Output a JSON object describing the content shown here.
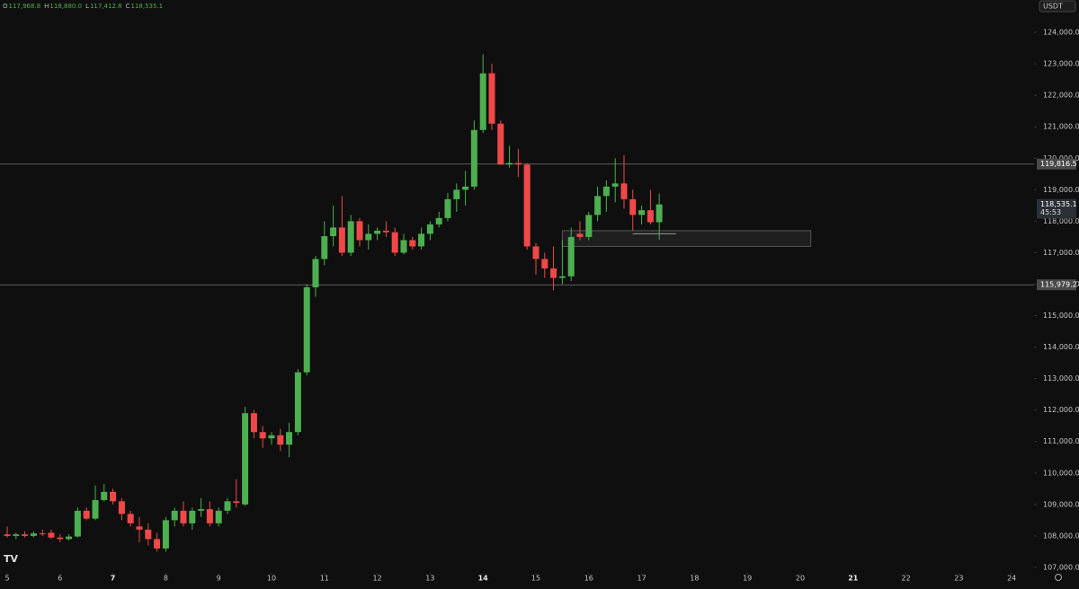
{
  "chart_data": {
    "type": "candlestick",
    "header": [
      {
        "key": "O",
        "value": "117,968.8"
      },
      {
        "key": "H",
        "value": "118,880.0"
      },
      {
        "key": "L",
        "value": "117,412.8"
      },
      {
        "key": "C",
        "value": "118,535.1"
      }
    ],
    "currency": "USDT",
    "up_color": "#4caf50",
    "down_color": "#f04848",
    "x": [
      5,
      5.167,
      5.333,
      5.5,
      5.667,
      5.833,
      6,
      6.167,
      6.333,
      6.5,
      6.667,
      6.833,
      7,
      7.167,
      7.333,
      7.5,
      7.667,
      7.833,
      8,
      8.167,
      8.333,
      8.5,
      8.667,
      8.833,
      9,
      9.167,
      9.333,
      9.5,
      9.667,
      9.833,
      10,
      10.167,
      10.333,
      10.5,
      10.667,
      10.833,
      11,
      11.167,
      11.333,
      11.5,
      11.667,
      11.833,
      12,
      12.167,
      12.333,
      12.5,
      12.667,
      12.833,
      13,
      13.167,
      13.333,
      13.5,
      13.667,
      13.833,
      14,
      14.167,
      14.333,
      14.5,
      14.667,
      14.833,
      15,
      15.167,
      15.333,
      15.5,
      15.667,
      15.833,
      16,
      16.167,
      16.333,
      16.5,
      16.667,
      16.833,
      17,
      17.167,
      17.333
    ],
    "open": [
      108050,
      108000,
      108050,
      108000,
      108080,
      108100,
      107950,
      107900,
      107980,
      108800,
      108550,
      109140,
      109400,
      109100,
      108700,
      108300,
      108200,
      107900,
      107600,
      108500,
      108800,
      108400,
      108800,
      108850,
      108400,
      108800,
      109100,
      109000,
      111900,
      111300,
      111100,
      111200,
      110900,
      111300,
      113200,
      115900,
      116800,
      117525,
      117800,
      117000,
      118000,
      117400,
      117600,
      117700,
      117650,
      117000,
      117400,
      117200,
      117600,
      117900,
      118100,
      118700,
      119000,
      119100,
      120900,
      122700,
      121100,
      119800,
      119850,
      119800,
      117200,
      116800,
      116500,
      116200,
      116250,
      117600,
      117500,
      118200,
      118800,
      119100,
      119200,
      118700,
      118200,
      118350,
      117968.8
    ],
    "high": [
      108300,
      108100,
      108150,
      108150,
      108200,
      108200,
      108050,
      108050,
      108900,
      108900,
      109600,
      109650,
      109500,
      109200,
      108800,
      108600,
      108400,
      108100,
      108600,
      108900,
      109100,
      108900,
      109200,
      109100,
      108900,
      109200,
      109800,
      112100,
      112000,
      111500,
      111300,
      111400,
      111600,
      113300,
      116000,
      116900,
      118000,
      118500,
      118800,
      118200,
      118100,
      117900,
      117800,
      118000,
      117800,
      117600,
      117500,
      117800,
      118000,
      118300,
      118900,
      119200,
      119600,
      121200,
      123300,
      123000,
      121200,
      120400,
      120300,
      119850,
      117300,
      117000,
      117200,
      117400,
      117800,
      118000,
      118300,
      119100,
      119300,
      120000,
      120100,
      119000,
      118500,
      119000,
      118880
    ],
    "low": [
      107950,
      107900,
      107950,
      107950,
      108000,
      107900,
      107800,
      107850,
      107950,
      108500,
      108500,
      109100,
      109000,
      108500,
      108300,
      107800,
      107700,
      107500,
      107500,
      108300,
      108300,
      108200,
      108600,
      108300,
      108300,
      108700,
      108900,
      108950,
      111100,
      110800,
      110900,
      110700,
      110500,
      111200,
      113100,
      115600,
      116600,
      117200,
      116900,
      116900,
      117200,
      117100,
      117400,
      117500,
      116900,
      116950,
      117100,
      117100,
      117400,
      117800,
      118000,
      118300,
      118500,
      119000,
      120800,
      120900,
      119800,
      119700,
      119400,
      117100,
      116300,
      116200,
      115800,
      116000,
      116100,
      117400,
      117400,
      118000,
      118300,
      118600,
      118400,
      117700,
      117900,
      117900,
      117412.8
    ],
    "close": [
      108000,
      108050,
      108000,
      108080,
      108050,
      107950,
      107900,
      107980,
      108800,
      108550,
      109140,
      109400,
      109100,
      108700,
      108400,
      108200,
      107900,
      107600,
      108500,
      108800,
      108400,
      108800,
      108850,
      108400,
      108800,
      109100,
      109050,
      111900,
      111300,
      111100,
      111200,
      110900,
      111300,
      113200,
      115900,
      116800,
      117525,
      117800,
      117000,
      118000,
      117400,
      117600,
      117700,
      117650,
      117000,
      117400,
      117200,
      117600,
      117900,
      118100,
      118700,
      119000,
      119100,
      120900,
      122700,
      121100,
      119800,
      119850,
      119800,
      117200,
      116800,
      116500,
      116200,
      116250,
      117500,
      117500,
      118200,
      118800,
      119100,
      119200,
      118700,
      118200,
      118350,
      117968.8,
      118535.1
    ],
    "xlim": [
      4.864,
      24.422
    ],
    "xticks": [
      5,
      6,
      7,
      8,
      9,
      10,
      11,
      12,
      13,
      14,
      15,
      16,
      17,
      18,
      19,
      20,
      21,
      22,
      23,
      24
    ],
    "bold_xticks": [
      7,
      14,
      21
    ],
    "ylim": [
      106770,
      125030
    ],
    "yticks": [
      {
        "value": 107000,
        "label": "107,000.0"
      },
      {
        "value": 108000,
        "label": "108,000.0"
      },
      {
        "value": 109000,
        "label": "109,000.0"
      },
      {
        "value": 110000,
        "label": "110,000.0"
      },
      {
        "value": 111000,
        "label": "111,000.0"
      },
      {
        "value": 112000,
        "label": "112,000.0"
      },
      {
        "value": 113000,
        "label": "113,000.0"
      },
      {
        "value": 114000,
        "label": "114,000.0"
      },
      {
        "value": 115000,
        "label": "115,000.0"
      },
      {
        "value": 116000,
        "label": "116,000.0"
      },
      {
        "value": 117000,
        "label": "117,000.0"
      },
      {
        "value": 118000,
        "label": "118,000.0"
      },
      {
        "value": 119000,
        "label": "119,000.0"
      },
      {
        "value": 120000,
        "label": "120,000.0"
      },
      {
        "value": 121000,
        "label": "121,000.0"
      },
      {
        "value": 122000,
        "label": "122,000.0"
      },
      {
        "value": 123000,
        "label": "123,000.0"
      },
      {
        "value": 124000,
        "label": "124,000.0"
      }
    ],
    "levels": [
      {
        "value": 119816.5,
        "label": "119,816.5"
      },
      {
        "value": 115979.2,
        "label": "115,979.2"
      }
    ],
    "last_price": {
      "value": 118535.1,
      "label": "118,535.1"
    },
    "countdown": "45:53",
    "zone": {
      "top": 117700,
      "bottom": 117200,
      "x_start": 15.5,
      "x_end": 20.2
    },
    "marker": {
      "value": 117600,
      "x_start": 16.83,
      "x_end": 17.65
    }
  }
}
